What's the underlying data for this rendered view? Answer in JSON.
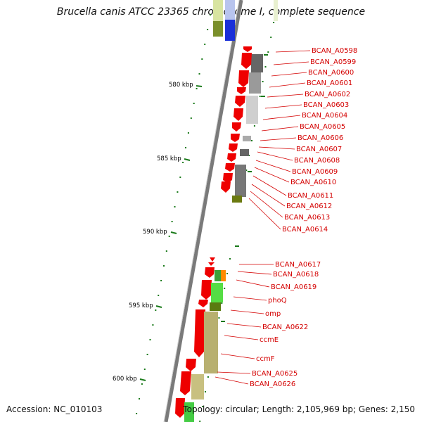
{
  "title": "Brucella canis ATCC 23365 chromosome I, complete sequence",
  "accession": "Accession: NC_010103",
  "summary": "Topology: circular; Length: 2,105,969 bp; Genes: 2,150",
  "kbp_labels": [
    "580 kbp",
    "585 kbp",
    "590 kbp",
    "595 kbp",
    "600 kbp"
  ],
  "gene_labels": [
    "BCAN_A0598",
    "BCAN_A0599",
    "BCAN_A0600",
    "BCAN_A0601",
    "BCAN_A0602",
    "BCAN_A0603",
    "BCAN_A0604",
    "BCAN_A0605",
    "BCAN_A0606",
    "BCAN_A0607",
    "BCAN_A0608",
    "BCAN_A0609",
    "BCAN_A0610",
    "BCAN_A0611",
    "BCAN_A0612",
    "BCAN_A0613",
    "BCAN_A0614",
    "BCAN_A0617",
    "BCAN_A0618",
    "BCAN_A0619",
    "phoQ",
    "omp",
    "BCAN_A0622",
    "ccmE",
    "ccmF",
    "BCAN_A0625",
    "BCAN_A0626"
  ],
  "colors": {
    "gene": "#ee0000",
    "backbone": "#8c8c8c",
    "ticks": "#1a7a1a",
    "label": "#d40000"
  }
}
